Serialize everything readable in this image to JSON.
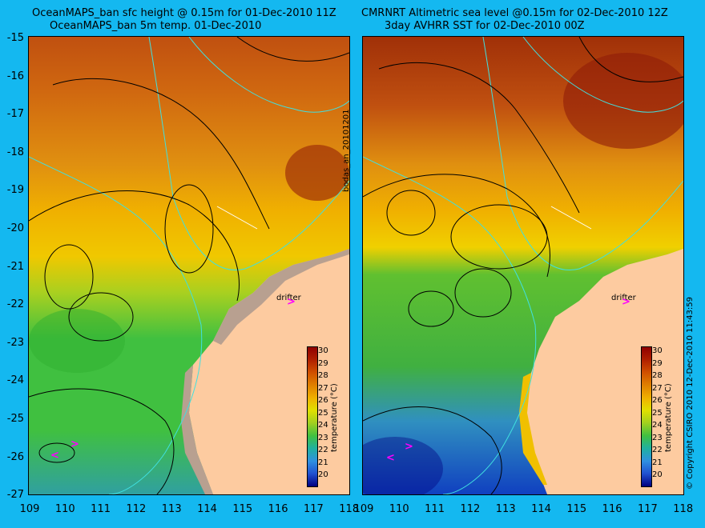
{
  "left_title": {
    "line1": "OceanMAPS_ban sfc height @ 0.15m for 01-Dec-2010 11Z",
    "line2": "OceanMAPS_ban 5m temp. 01-Dec-2010"
  },
  "right_title": {
    "line1": "CMRNRT Altimetric sea level  @0.15m  for 02-Dec-2010 12Z",
    "line2": "3day AVHRR SST for 02-Dec-2010 00Z"
  },
  "y_ticks": [
    "-15",
    "-16",
    "-17",
    "-18",
    "-19",
    "-20",
    "-21",
    "-22",
    "-23",
    "-24",
    "-25",
    "-26",
    "-27"
  ],
  "x_ticks_left": [
    "109",
    "110",
    "111",
    "112",
    "113",
    "114",
    "115",
    "116",
    "117",
    "118"
  ],
  "x_ticks_right": [
    "109",
    "110",
    "111",
    "112",
    "113",
    "114",
    "115",
    "116",
    "117",
    "118"
  ],
  "left_panel": {
    "side_label": "bodas_an_20101201",
    "drifter_label": "drifter"
  },
  "right_panel": {
    "drifter_label": "drifter"
  },
  "colorbar": {
    "ticks": [
      "30",
      "29",
      "28",
      "27",
      "26",
      "25",
      "24",
      "23",
      "22",
      "21",
      "20"
    ],
    "title": "temperature (°C)"
  },
  "right_side_text": "© Copyright CSIRO 2010   12-Dec-2010 11:43:59",
  "colors": {
    "background": "#14b8f0",
    "land": "#fdcba0",
    "warm": "#b04008",
    "mid": "#f0b000",
    "cool": "#40c040",
    "cold": "#1050c0",
    "coast_line": "#40e0e0",
    "contour": "#000000",
    "drifter_arrow": "#ff00ff"
  }
}
